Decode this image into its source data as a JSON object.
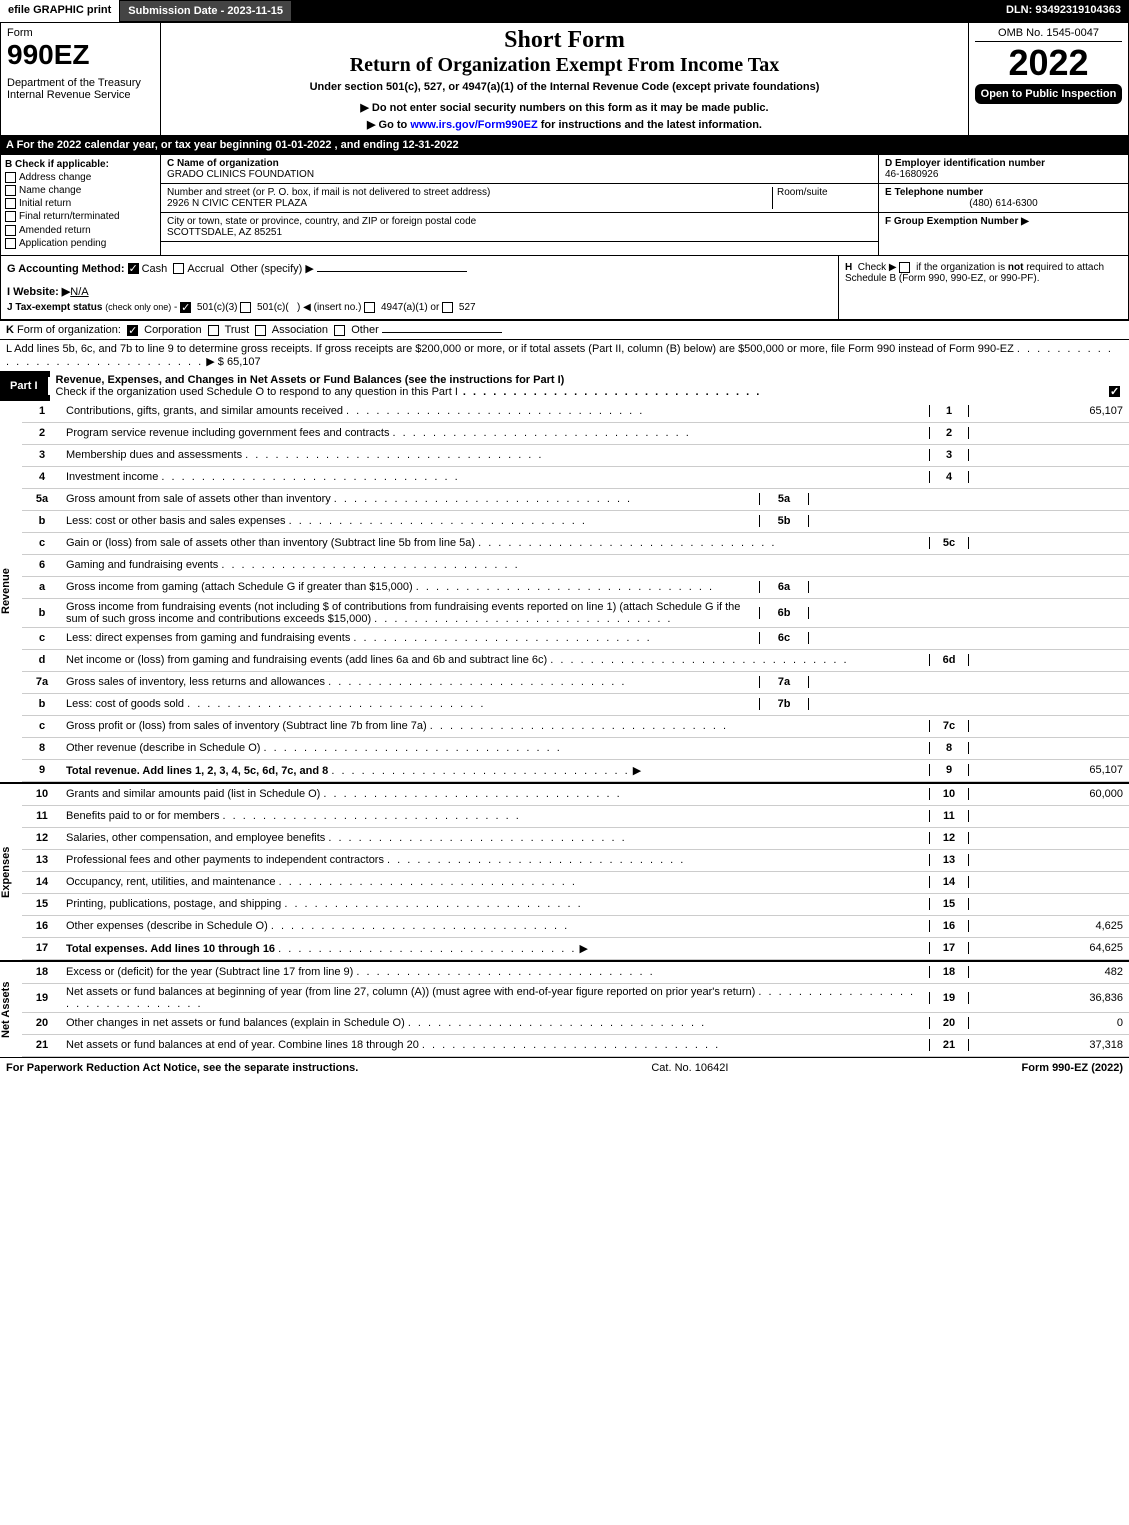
{
  "topbar": {
    "efile": "efile GRAPHIC print",
    "subdate": "Submission Date - 2023-11-15",
    "dln": "DLN: 93492319104363"
  },
  "header": {
    "form_word": "Form",
    "form_no": "990EZ",
    "dept": "Department of the Treasury",
    "irs": "Internal Revenue Service",
    "short_form": "Short Form",
    "title": "Return of Organization Exempt From Income Tax",
    "subtitle": "Under section 501(c), 527, or 4947(a)(1) of the Internal Revenue Code (except private foundations)",
    "warn": "▶ Do not enter social security numbers on this form as it may be made public.",
    "goto": "▶ Go to www.irs.gov/Form990EZ for instructions and the latest information.",
    "omb": "OMB No. 1545-0047",
    "year": "2022",
    "open": "Open to Public Inspection"
  },
  "section_a": "A  For the 2022 calendar year, or tax year beginning 01-01-2022 , and ending 12-31-2022",
  "box_b": {
    "label": "B  Check if applicable:",
    "addr": "Address change",
    "name": "Name change",
    "initial": "Initial return",
    "final": "Final return/terminated",
    "amended": "Amended return",
    "pending": "Application pending"
  },
  "box_c": {
    "name_label": "C Name of organization",
    "name": "GRADO CLINICS FOUNDATION",
    "street_label": "Number and street (or P. O. box, if mail is not delivered to street address)",
    "room_label": "Room/suite",
    "street": "2926 N CIVIC CENTER PLAZA",
    "city_label": "City or town, state or province, country, and ZIP or foreign postal code",
    "city": "SCOTTSDALE, AZ  85251"
  },
  "box_d": {
    "ein_label": "D Employer identification number",
    "ein": "46-1680926",
    "phone_label": "E Telephone number",
    "phone": "(480) 614-6300",
    "group_label": "F Group Exemption Number  ▶"
  },
  "line_g": "G Accounting Method:",
  "g_cash": "Cash",
  "g_accrual": "Accrual",
  "g_other": "Other (specify) ▶",
  "line_h": "H  Check ▶    if the organization is not required to attach Schedule B (Form 990, 990-EZ, or 990-PF).",
  "line_i": "I Website: ▶",
  "website": "N/A",
  "line_j": "J Tax-exempt status (check only one) -      501(c)(3)     501(c)(  ) ◀ (insert no.)     4947(a)(1) or     527",
  "line_k": "K Form of organization:      Corporation     Trust     Association     Other",
  "line_l": "L Add lines 5b, 6c, and 7b to line 9 to determine gross receipts. If gross receipts are $200,000 or more, or if total assets (Part II, column (B) below) are $500,000 or more, file Form 990 instead of Form 990-EZ",
  "line_l_val": "▶ $ 65,107",
  "part1": {
    "tab": "Part I",
    "title": "Revenue, Expenses, and Changes in Net Assets or Fund Balances (see the instructions for Part I)",
    "check": "Check if the organization used Schedule O to respond to any question in this Part I"
  },
  "vlabels": {
    "rev": "Revenue",
    "exp": "Expenses",
    "na": "Net Assets"
  },
  "rows": {
    "1": {
      "n": "1",
      "d": "Contributions, gifts, grants, and similar amounts received",
      "rn": "1",
      "v": "65,107"
    },
    "2": {
      "n": "2",
      "d": "Program service revenue including government fees and contracts",
      "rn": "2",
      "v": ""
    },
    "3": {
      "n": "3",
      "d": "Membership dues and assessments",
      "rn": "3",
      "v": ""
    },
    "4": {
      "n": "4",
      "d": "Investment income",
      "rn": "4",
      "v": ""
    },
    "5a": {
      "n": "5a",
      "d": "Gross amount from sale of assets other than inventory",
      "sub": "5a"
    },
    "5b": {
      "n": "b",
      "d": "Less: cost or other basis and sales expenses",
      "sub": "5b"
    },
    "5c": {
      "n": "c",
      "d": "Gain or (loss) from sale of assets other than inventory (Subtract line 5b from line 5a)",
      "rn": "5c",
      "v": ""
    },
    "6": {
      "n": "6",
      "d": "Gaming and fundraising events"
    },
    "6a": {
      "n": "a",
      "d": "Gross income from gaming (attach Schedule G if greater than $15,000)",
      "sub": "6a"
    },
    "6b": {
      "n": "b",
      "d": "Gross income from fundraising events (not including $                 of contributions from fundraising events reported on line 1) (attach Schedule G if the sum of such gross income and contributions exceeds $15,000)",
      "sub": "6b"
    },
    "6c": {
      "n": "c",
      "d": "Less: direct expenses from gaming and fundraising events",
      "sub": "6c"
    },
    "6d": {
      "n": "d",
      "d": "Net income or (loss) from gaming and fundraising events (add lines 6a and 6b and subtract line 6c)",
      "rn": "6d",
      "v": ""
    },
    "7a": {
      "n": "7a",
      "d": "Gross sales of inventory, less returns and allowances",
      "sub": "7a"
    },
    "7b": {
      "n": "b",
      "d": "Less: cost of goods sold",
      "sub": "7b"
    },
    "7c": {
      "n": "c",
      "d": "Gross profit or (loss) from sales of inventory (Subtract line 7b from line 7a)",
      "rn": "7c",
      "v": ""
    },
    "8": {
      "n": "8",
      "d": "Other revenue (describe in Schedule O)",
      "rn": "8",
      "v": ""
    },
    "9": {
      "n": "9",
      "d": "Total revenue. Add lines 1, 2, 3, 4, 5c, 6d, 7c, and 8",
      "rn": "9",
      "v": "65,107",
      "arrow": "▶"
    },
    "10": {
      "n": "10",
      "d": "Grants and similar amounts paid (list in Schedule O)",
      "rn": "10",
      "v": "60,000"
    },
    "11": {
      "n": "11",
      "d": "Benefits paid to or for members",
      "rn": "11",
      "v": ""
    },
    "12": {
      "n": "12",
      "d": "Salaries, other compensation, and employee benefits",
      "rn": "12",
      "v": ""
    },
    "13": {
      "n": "13",
      "d": "Professional fees and other payments to independent contractors",
      "rn": "13",
      "v": ""
    },
    "14": {
      "n": "14",
      "d": "Occupancy, rent, utilities, and maintenance",
      "rn": "14",
      "v": ""
    },
    "15": {
      "n": "15",
      "d": "Printing, publications, postage, and shipping",
      "rn": "15",
      "v": ""
    },
    "16": {
      "n": "16",
      "d": "Other expenses (describe in Schedule O)",
      "rn": "16",
      "v": "4,625"
    },
    "17": {
      "n": "17",
      "d": "Total expenses. Add lines 10 through 16",
      "rn": "17",
      "v": "64,625",
      "arrow": "▶"
    },
    "18": {
      "n": "18",
      "d": "Excess or (deficit) for the year (Subtract line 17 from line 9)",
      "rn": "18",
      "v": "482"
    },
    "19": {
      "n": "19",
      "d": "Net assets or fund balances at beginning of year (from line 27, column (A)) (must agree with end-of-year figure reported on prior year's return)",
      "rn": "19",
      "v": "36,836"
    },
    "20": {
      "n": "20",
      "d": "Other changes in net assets or fund balances (explain in Schedule O)",
      "rn": "20",
      "v": "0"
    },
    "21": {
      "n": "21",
      "d": "Net assets or fund balances at end of year. Combine lines 18 through 20",
      "rn": "21",
      "v": "37,318"
    }
  },
  "footer": {
    "left": "For Paperwork Reduction Act Notice, see the separate instructions.",
    "mid": "Cat. No. 10642I",
    "right": "Form 990-EZ (2022)"
  }
}
